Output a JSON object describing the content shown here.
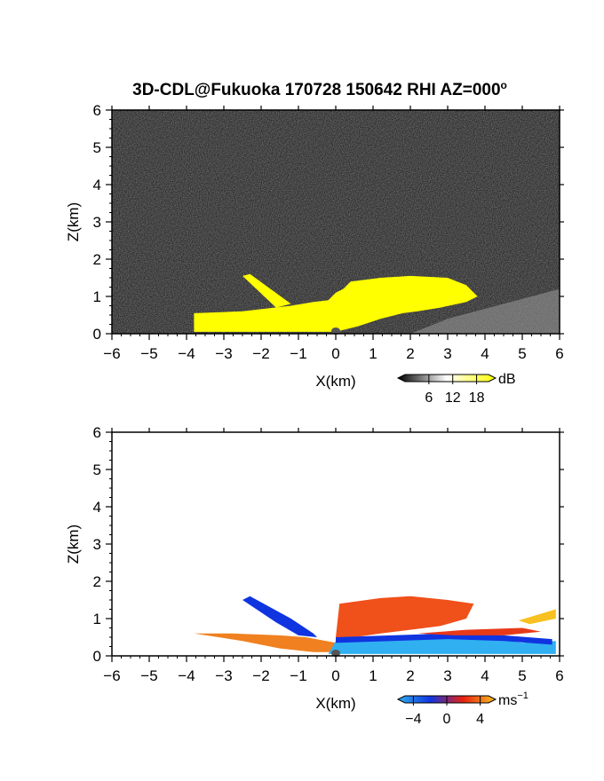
{
  "title": "3D-CDL@Fukuoka 170728 150642 RHI AZ=000",
  "title_degree": "o",
  "colors": {
    "echo_yellow": "#ffff00",
    "background_noise": "#262626",
    "velocity_negative_dark": "#1034e0",
    "velocity_negative_light": "#30b0f0",
    "velocity_zero": "#e82010",
    "velocity_positive": "#f8c020"
  },
  "chart_data": [
    {
      "type": "heatmap",
      "name": "power-panel",
      "xlabel": "X(km)",
      "ylabel": "Z(km)",
      "xlim": [
        -6,
        6
      ],
      "ylim": [
        0,
        6
      ],
      "x_ticks": [
        -6,
        -5,
        -4,
        -3,
        -2,
        -1,
        0,
        1,
        2,
        3,
        4,
        5,
        6
      ],
      "y_ticks": [
        0,
        1,
        2,
        3,
        4,
        5,
        6
      ],
      "colorbar": {
        "unit": "dB",
        "tick_values": [
          6,
          12,
          18
        ],
        "range": [
          0,
          21
        ],
        "colors": [
          "#000000",
          "#ffffff",
          "#ffff00"
        ]
      },
      "regions": [
        {
          "label": "near-surface echo",
          "color": "#ffff00",
          "polygon": [
            [
              -3.8,
              0.05
            ],
            [
              -3.8,
              0.55
            ],
            [
              -2.5,
              0.6
            ],
            [
              -1.2,
              0.75
            ],
            [
              -0.6,
              0.85
            ],
            [
              -0.2,
              0.9
            ],
            [
              0.0,
              1.1
            ],
            [
              0.2,
              1.2
            ],
            [
              0.4,
              1.4
            ],
            [
              1.2,
              1.5
            ],
            [
              2.0,
              1.55
            ],
            [
              3.0,
              1.5
            ],
            [
              3.5,
              1.3
            ],
            [
              3.8,
              1.0
            ],
            [
              3.5,
              0.85
            ],
            [
              2.8,
              0.7
            ],
            [
              2.2,
              0.6
            ],
            [
              1.8,
              0.55
            ],
            [
              1.2,
              0.4
            ],
            [
              0.6,
              0.2
            ],
            [
              0.0,
              0.05
            ]
          ]
        },
        {
          "label": "upper-left plume",
          "color": "#ffff00",
          "polygon": [
            [
              -2.5,
              1.55
            ],
            [
              -2.3,
              1.6
            ],
            [
              -1.2,
              0.8
            ],
            [
              -1.6,
              0.7
            ]
          ]
        }
      ]
    },
    {
      "type": "heatmap",
      "name": "velocity-panel",
      "xlabel": "X(km)",
      "ylabel": "Z(km)",
      "xlim": [
        -6,
        6
      ],
      "ylim": [
        0,
        6
      ],
      "x_ticks": [
        -6,
        -5,
        -4,
        -3,
        -2,
        -1,
        0,
        1,
        2,
        3,
        4,
        5,
        6
      ],
      "y_ticks": [
        0,
        1,
        2,
        3,
        4,
        5,
        6
      ],
      "colorbar": {
        "unit": "ms",
        "unit_exponent": "-1",
        "tick_values": [
          -4,
          0,
          4
        ],
        "range": [
          -5,
          5
        ],
        "colors": [
          "#30b0f0",
          "#1034e0",
          "#e82010",
          "#f8c020"
        ]
      },
      "regions": [
        {
          "label": "negative velocity plume",
          "color": "#1034e0",
          "polygon": [
            [
              -2.5,
              1.5
            ],
            [
              -2.3,
              1.6
            ],
            [
              -1.2,
              1.0
            ],
            [
              -0.6,
              0.6
            ],
            [
              -0.5,
              0.5
            ],
            [
              -1.0,
              0.55
            ],
            [
              -1.6,
              0.9
            ]
          ]
        },
        {
          "label": "upper-right positive region",
          "color": "#f0501a",
          "polygon": [
            [
              0.0,
              0.5
            ],
            [
              0.1,
              1.4
            ],
            [
              1.2,
              1.55
            ],
            [
              2.0,
              1.6
            ],
            [
              3.0,
              1.5
            ],
            [
              3.7,
              1.4
            ],
            [
              3.5,
              1.0
            ],
            [
              2.8,
              0.8
            ],
            [
              2.0,
              0.7
            ],
            [
              1.2,
              0.6
            ],
            [
              0.5,
              0.5
            ]
          ]
        },
        {
          "label": "left low positive layer",
          "color": "#f08020",
          "polygon": [
            [
              -3.8,
              0.6
            ],
            [
              -2.8,
              0.6
            ],
            [
              -1.5,
              0.55
            ],
            [
              -0.8,
              0.5
            ],
            [
              0.0,
              0.35
            ],
            [
              0.0,
              0.1
            ],
            [
              -0.6,
              0.1
            ],
            [
              -1.5,
              0.2
            ],
            [
              -2.5,
              0.4
            ]
          ]
        },
        {
          "label": "surface negative layer",
          "color": "#30b0f0",
          "polygon": [
            [
              -0.2,
              0.05
            ],
            [
              0.0,
              0.4
            ],
            [
              1.0,
              0.45
            ],
            [
              2.0,
              0.5
            ],
            [
              3.0,
              0.55
            ],
            [
              4.0,
              0.5
            ],
            [
              5.0,
              0.35
            ],
            [
              5.9,
              0.4
            ],
            [
              5.9,
              0.05
            ]
          ]
        },
        {
          "label": "mid-right negative band",
          "color": "#1034e0",
          "polygon": [
            [
              0.0,
              0.35
            ],
            [
              0.0,
              0.5
            ],
            [
              1.5,
              0.55
            ],
            [
              3.0,
              0.6
            ],
            [
              4.5,
              0.55
            ],
            [
              5.8,
              0.45
            ],
            [
              5.8,
              0.3
            ],
            [
              4.5,
              0.4
            ],
            [
              3.0,
              0.45
            ],
            [
              1.5,
              0.4
            ]
          ]
        },
        {
          "label": "right positive band",
          "color": "#e83a18",
          "polygon": [
            [
              2.2,
              0.6
            ],
            [
              3.5,
              0.7
            ],
            [
              5.0,
              0.75
            ],
            [
              5.5,
              0.65
            ],
            [
              4.5,
              0.55
            ],
            [
              3.2,
              0.55
            ]
          ]
        },
        {
          "label": "far right positive patch",
          "color": "#f8c020",
          "polygon": [
            [
              4.9,
              0.95
            ],
            [
              5.9,
              1.25
            ],
            [
              5.9,
              1.0
            ],
            [
              5.2,
              0.85
            ]
          ]
        }
      ]
    }
  ]
}
